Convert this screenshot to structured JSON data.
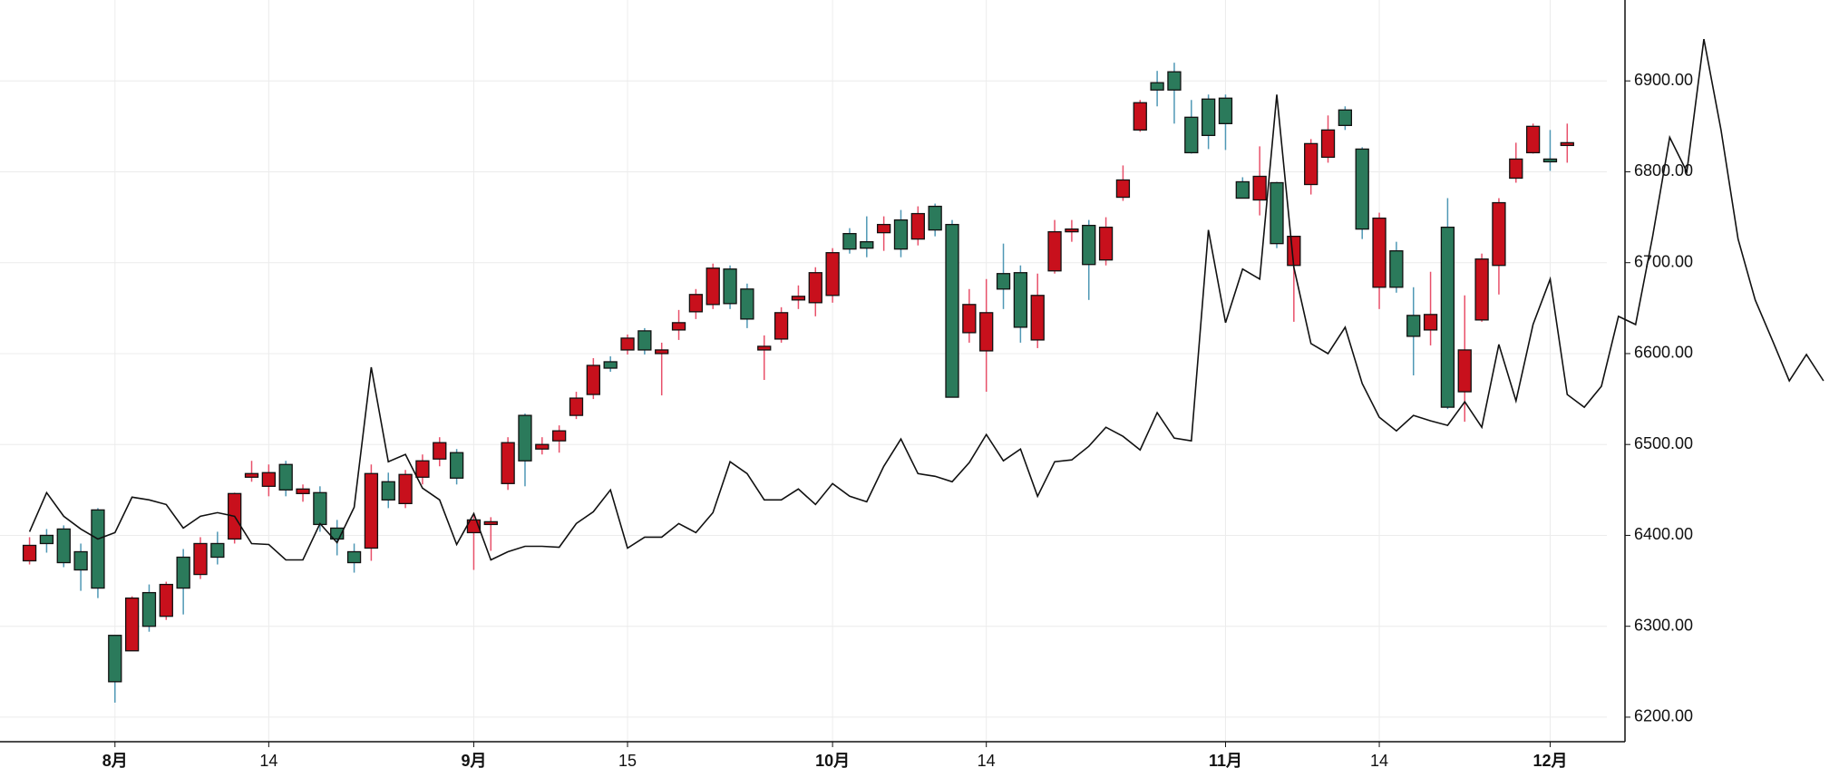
{
  "chart_data": {
    "type": "candlestick",
    "categories": [
      null,
      null,
      null,
      null,
      null,
      "8月",
      null,
      null,
      null,
      null,
      null,
      null,
      null,
      null,
      "14",
      null,
      null,
      null,
      null,
      null,
      null,
      null,
      null,
      null,
      null,
      null,
      "9月",
      null,
      null,
      null,
      null,
      null,
      null,
      null,
      null,
      "15",
      null,
      null,
      null,
      null,
      null,
      null,
      null,
      null,
      null,
      null,
      null,
      "10月",
      null,
      null,
      null,
      null,
      null,
      null,
      null,
      null,
      "14",
      null,
      null,
      null,
      null,
      null,
      null,
      null,
      null,
      null,
      null,
      null,
      null,
      null,
      "11月",
      null,
      null,
      null,
      null,
      null,
      null,
      null,
      null,
      "14",
      null,
      null,
      null,
      null,
      null,
      null,
      null,
      null,
      null,
      "12月",
      null,
      null,
      null,
      null,
      null,
      null,
      null,
      null,
      null,
      null,
      null,
      null,
      null,
      null,
      null,
      null
    ],
    "open": [
      6372,
      6400,
      6407,
      6382,
      6428,
      6290,
      6273,
      6337,
      6311,
      6376,
      6357,
      6391,
      6396,
      6464,
      6454,
      6478,
      6446,
      6447,
      6408,
      6382,
      6386,
      6459,
      6435,
      6464,
      6484,
      6491,
      6403,
      6412,
      6457,
      6532,
      6495,
      6504,
      6532,
      6555,
      6591,
      6604,
      6625,
      6600,
      6626,
      6646,
      6654,
      6693,
      6671,
      6604,
      6616,
      6659,
      6656,
      6664,
      6732,
      6723,
      6733,
      6747,
      6726,
      6762,
      6742,
      6623,
      6603,
      6688,
      6689,
      6615,
      6691,
      6734,
      6741,
      6703,
      6772,
      6846,
      6898,
      6910,
      6860,
      6880,
      6881,
      6789,
      6769,
      6788,
      6697,
      6786,
      6816,
      6868,
      6825,
      6673,
      6713,
      6642,
      6626,
      6739,
      6558,
      6637,
      6697,
      6793,
      6821,
      6814,
      6829,
      null,
      null,
      null,
      null,
      null,
      null,
      null,
      null,
      null,
      null,
      null,
      null,
      null,
      null,
      null
    ],
    "high": [
      6398,
      6407,
      6411,
      6391,
      6430,
      6290,
      6333,
      6346,
      6349,
      6385,
      6398,
      6404,
      6447,
      6482,
      6478,
      6482,
      6456,
      6454,
      6417,
      6391,
      6478,
      6469,
      6472,
      6489,
      6508,
      6495,
      6424,
      6420,
      6508,
      6534,
      6508,
      6521,
      6558,
      6595,
      6597,
      6621,
      6628,
      6612,
      6648,
      6671,
      6699,
      6697,
      6677,
      6620,
      6651,
      6675,
      6695,
      6716,
      6738,
      6751,
      6751,
      6758,
      6762,
      6765,
      6747,
      6671,
      6682,
      6721,
      6697,
      6688,
      6747,
      6747,
      6747,
      6750,
      6807,
      6879,
      6911,
      6920,
      6879,
      6885,
      6885,
      6794,
      6828,
      6789,
      6729,
      6836,
      6862,
      6872,
      6827,
      6755,
      6723,
      6673,
      6690,
      6771,
      6664,
      6710,
      6771,
      6832,
      6853,
      6846,
      6853,
      null,
      null,
      null,
      null,
      null,
      null,
      null,
      null,
      null,
      null,
      null,
      null,
      null,
      null,
      null
    ],
    "low": [
      6368,
      6381,
      6365,
      6339,
      6331,
      6216,
      6273,
      6294,
      6307,
      6313,
      6352,
      6368,
      6391,
      6459,
      6443,
      6443,
      6437,
      6404,
      6378,
      6359,
      6372,
      6430,
      6430,
      6456,
      6476,
      6456,
      6362,
      6383,
      6450,
      6454,
      6489,
      6491,
      6528,
      6550,
      6580,
      6599,
      6599,
      6554,
      6615,
      6638,
      6649,
      6649,
      6628,
      6571,
      6612,
      6649,
      6641,
      6656,
      6710,
      6706,
      6713,
      6706,
      6719,
      6729,
      6552,
      6612,
      6558,
      6649,
      6612,
      6606,
      6688,
      6723,
      6659,
      6697,
      6768,
      6844,
      6872,
      6853,
      6820,
      6825,
      6824,
      6771,
      6752,
      6716,
      6635,
      6775,
      6810,
      6846,
      6726,
      6649,
      6667,
      6576,
      6609,
      6539,
      6525,
      6635,
      6665,
      6788,
      6820,
      6801,
      6810,
      null,
      null,
      null,
      null,
      null,
      null,
      null,
      null,
      null,
      null,
      null,
      null,
      null,
      null,
      null
    ],
    "close": [
      6389,
      6391,
      6370,
      6362,
      6342,
      6239,
      6331,
      6300,
      6346,
      6342,
      6391,
      6376,
      6446,
      6468,
      6469,
      6450,
      6451,
      6412,
      6396,
      6370,
      6468,
      6439,
      6467,
      6482,
      6502,
      6463,
      6417,
      6415,
      6502,
      6482,
      6500,
      6515,
      6551,
      6587,
      6584,
      6617,
      6604,
      6604,
      6634,
      6665,
      6694,
      6655,
      6638,
      6608,
      6645,
      6663,
      6689,
      6711,
      6715,
      6716,
      6742,
      6715,
      6754,
      6736,
      6552,
      6654,
      6645,
      6671,
      6629,
      6664,
      6734,
      6737,
      6698,
      6739,
      6791,
      6876,
      6890,
      6890,
      6821,
      6840,
      6853,
      6771,
      6795,
      6721,
      6729,
      6831,
      6846,
      6851,
      6737,
      6749,
      6673,
      6619,
      6643,
      6541,
      6604,
      6704,
      6766,
      6814,
      6850,
      6811,
      6832,
      null,
      null,
      null,
      null,
      null,
      null,
      null,
      null,
      null,
      null,
      null,
      null,
      null,
      null,
      null
    ],
    "up_color": "#c8101c",
    "down_color": "#2b7a5b",
    "up_wick_color": "#e8506a",
    "down_wick_color": "#4f98b5",
    "overlay": {
      "type": "line",
      "color": "#111111",
      "values": [
        6404,
        6447,
        6421,
        6407,
        6396,
        6403,
        6442,
        6439,
        6434,
        6408,
        6421,
        6425,
        6421,
        6391,
        6390,
        6373,
        6373,
        6413,
        6392,
        6431,
        6585,
        6481,
        6489,
        6452,
        6439,
        6390,
        6424,
        6373,
        6382,
        6388,
        6388,
        6387,
        6413,
        6426,
        6450,
        6386,
        6398,
        6398,
        6413,
        6403,
        6425,
        6481,
        6468,
        6439,
        6439,
        6451,
        6434,
        6457,
        6443,
        6437,
        6476,
        6506,
        6468,
        6465,
        6459,
        6480,
        6511,
        6482,
        6495,
        6443,
        6481,
        6483,
        6498,
        6519,
        6509,
        6494,
        6535,
        6507,
        6504,
        6736,
        6634,
        6693,
        6682,
        6885,
        6695,
        6611,
        6600,
        6629,
        6567,
        6530,
        6515,
        6532,
        6526,
        6521,
        6547,
        6519,
        6610,
        6548,
        6632,
        6682,
        6555,
        6541,
        6564,
        6641,
        6632,
        6729,
        6838,
        6800,
        6946,
        6846,
        6726,
        6659,
        6615,
        6570,
        6599,
        6570
      ]
    },
    "ylim": [
      6173,
      6989
    ],
    "yticks": [
      {
        "value": 6200,
        "label": "6200.00"
      },
      {
        "value": 6300,
        "label": "6300.00"
      },
      {
        "value": 6400,
        "label": "6400.00"
      },
      {
        "value": 6500,
        "label": "6500.00"
      },
      {
        "value": 6600,
        "label": "6600.00"
      },
      {
        "value": 6700,
        "label": "6700.00"
      },
      {
        "value": 6800,
        "label": "6800.00"
      },
      {
        "value": 6900,
        "label": "6900.00"
      }
    ],
    "grid": true
  }
}
